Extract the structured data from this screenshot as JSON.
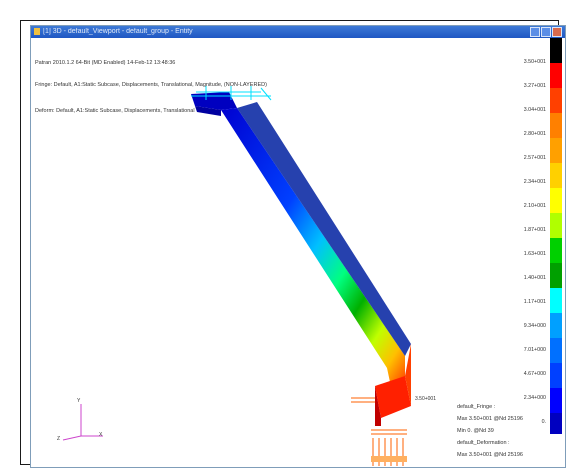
{
  "window": {
    "title": "[1] 3D - default_Viewport - default_group - Entity"
  },
  "header_lines": [
    "Patran 2010.1.2 64-Bit (MD Enabled) 14-Feb-12 13:48:36",
    "Fringe: Default, A1:Static Subcase, Displacements, Translational, Magnitude, (NON-LAYERED)",
    "Deform: Default, A1:Static Subcase, Displacements, Translational"
  ],
  "legend": {
    "ticks": [
      "3.50+001",
      "3.27+001",
      "3.04+001",
      "2.80+001",
      "2.57+001",
      "2.34+001",
      "2.10+001",
      "1.87+001",
      "1.63+001",
      "1.40+001",
      "1.17+001",
      "9.34+000",
      "7.01+000",
      "4.67+000",
      "2.34+000",
      "0."
    ],
    "colors": [
      "#000000",
      "#ff0000",
      "#ff4000",
      "#ff8000",
      "#ffa000",
      "#ffd000",
      "#ffff00",
      "#b0ff00",
      "#00d000",
      "#00a000",
      "#00ffff",
      "#00a0ff",
      "#0070ff",
      "#0040ff",
      "#0000ff",
      "#0000c0"
    ]
  },
  "labels": {
    "max_marker": "3.50+001",
    "fringe_lines": [
      "default_Fringe :",
      "Max 3.50+001 @Nd 25196",
      "Min 0. @Nd 39",
      "default_Deformation :",
      "Max 3.50+001 @Nd 25196"
    ]
  },
  "axis": {
    "x": "X",
    "y": "Y",
    "z": "Z"
  }
}
